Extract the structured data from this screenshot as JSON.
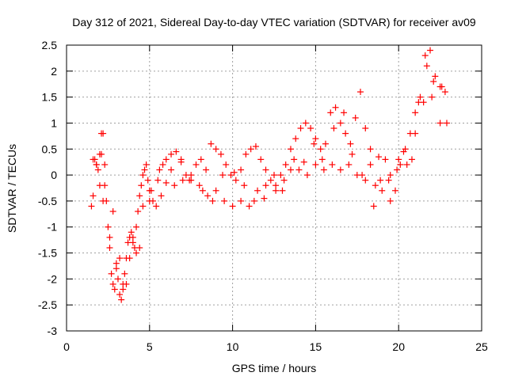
{
  "chart_data": {
    "type": "scatter",
    "title": "Day 312 of 2021, Sidereal Day-to-day VTEC variation (SDTVAR) for receiver av09",
    "xlabel": "GPS time / hours",
    "ylabel": "SDTVAR / TECUs",
    "xlim": [
      0,
      25
    ],
    "ylim": [
      -3,
      2.5
    ],
    "xticks": [
      0,
      5,
      10,
      15,
      20,
      25
    ],
    "yticks": [
      -3,
      -2.5,
      -2,
      -1.5,
      -1,
      -0.5,
      0,
      0.5,
      1,
      1.5,
      2,
      2.5
    ],
    "grid": true,
    "marker": "+",
    "color": "#ff0000",
    "series": [
      {
        "x": [
          1.5,
          1.6,
          1.7,
          1.8,
          1.9,
          2.0,
          2.1,
          2.2,
          2.3,
          2.4,
          2.5,
          2.6,
          2.7,
          2.8,
          2.9,
          3.0,
          3.1,
          3.2,
          3.3,
          3.4,
          3.5,
          3.6,
          3.7,
          3.8,
          3.9,
          4.0,
          4.1,
          4.2,
          4.3,
          4.4,
          4.5,
          4.6,
          4.7,
          4.8,
          4.9,
          5.0,
          5.2,
          5.4,
          5.6,
          5.8,
          6.0,
          6.3,
          6.6,
          6.9,
          7.2,
          7.5,
          7.8,
          8.1,
          8.4,
          8.7,
          9.0,
          9.3,
          9.6,
          9.9,
          10.2,
          10.5,
          10.8,
          11.1,
          11.4,
          11.7,
          12.0,
          12.3,
          12.6,
          12.9,
          13.2,
          13.5,
          13.8,
          14.1,
          14.4,
          14.7,
          15.0,
          15.3,
          15.6,
          15.9,
          16.2,
          16.5,
          16.8,
          17.1,
          17.4,
          17.7,
          18.0,
          18.3,
          18.6,
          18.9,
          19.2,
          19.5,
          19.8,
          20.1,
          20.4,
          20.7,
          21.0,
          21.3,
          21.6,
          21.9,
          22.2,
          22.5,
          22.8,
          1.6,
          1.8,
          2.0,
          2.2,
          2.6,
          3.0,
          3.4,
          3.8,
          4.2,
          4.6,
          5.0,
          5.5,
          6.0,
          6.5,
          7.0,
          7.5,
          8.0,
          8.5,
          9.0,
          9.5,
          10.0,
          10.5,
          11.0,
          11.5,
          12.0,
          12.5,
          13.0,
          13.5,
          14.0,
          14.5,
          15.0,
          15.5,
          16.0,
          16.5,
          17.0,
          17.5,
          18.0,
          18.5,
          19.0,
          19.5,
          20.0,
          20.5,
          21.0,
          21.5,
          22.0,
          22.5,
          2.1,
          2.3,
          2.8,
          3.2,
          3.6,
          4.0,
          4.4,
          5.1,
          5.7,
          6.3,
          6.9,
          7.4,
          8.2,
          8.8,
          9.4,
          10.1,
          10.7,
          11.3,
          11.9,
          12.6,
          13.1,
          13.7,
          14.3,
          14.9,
          15.4,
          16.1,
          16.7,
          17.2,
          17.8,
          18.3,
          18.8,
          19.4,
          19.9,
          20.3,
          20.8,
          21.2,
          21.7,
          22.1,
          22.6,
          22.9
        ],
        "y": [
          -0.6,
          -0.4,
          0.3,
          0.2,
          0.1,
          0.4,
          0.8,
          0.8,
          0.2,
          -0.5,
          -1.0,
          -1.4,
          -1.9,
          -2.1,
          -2.2,
          -1.8,
          -2.0,
          -2.3,
          -2.4,
          -2.2,
          -1.9,
          -1.6,
          -1.3,
          -1.2,
          -1.1,
          -1.2,
          -1.4,
          -1.0,
          -0.7,
          -0.4,
          -0.2,
          0.0,
          0.1,
          0.2,
          -0.1,
          -0.3,
          -0.5,
          -0.6,
          0.1,
          0.2,
          0.3,
          0.4,
          0.45,
          0.3,
          0.0,
          -0.1,
          0.2,
          0.3,
          0.1,
          0.6,
          0.5,
          0.4,
          0.2,
          0.0,
          -0.1,
          0.1,
          0.4,
          0.5,
          0.55,
          0.3,
          0.1,
          -0.1,
          -0.3,
          0.0,
          0.2,
          0.5,
          0.7,
          0.9,
          1.0,
          0.9,
          0.7,
          0.5,
          0.6,
          1.2,
          1.3,
          1.0,
          0.8,
          0.6,
          1.1,
          1.6,
          0.9,
          0.5,
          -0.2,
          -0.1,
          0.3,
          0.0,
          -0.3,
          0.2,
          0.5,
          0.8,
          1.2,
          1.5,
          2.3,
          2.4,
          1.9,
          1.7,
          1.6,
          0.3,
          0.2,
          -0.2,
          -0.5,
          -1.2,
          -1.7,
          -2.1,
          -1.6,
          -1.5,
          -0.6,
          -0.5,
          -0.1,
          -0.15,
          -0.2,
          -0.1,
          0.0,
          -0.2,
          -0.4,
          -0.3,
          -0.5,
          -0.6,
          -0.5,
          -0.6,
          -0.3,
          -0.2,
          0.0,
          -0.3,
          0.1,
          0.1,
          0.0,
          0.2,
          0.1,
          0.2,
          0.1,
          0.2,
          0.0,
          -0.1,
          -0.6,
          -0.3,
          -0.5,
          0.3,
          0.2,
          0.8,
          1.4,
          1.5,
          1.0,
          0.4,
          -0.2,
          -0.7,
          -1.6,
          -2.1,
          -1.3,
          -1.4,
          -0.3,
          -0.4,
          0.1,
          0.25,
          -0.1,
          -0.3,
          -0.5,
          0.0,
          0.05,
          -0.2,
          -0.5,
          -0.45,
          -0.2,
          -0.1,
          0.3,
          0.25,
          0.6,
          0.3,
          0.9,
          1.2,
          0.4,
          0.0,
          0.2,
          0.35,
          -0.1,
          0.1,
          0.45,
          0.3,
          1.4,
          2.1,
          1.8,
          1.7,
          1.0
        ]
      }
    ]
  }
}
